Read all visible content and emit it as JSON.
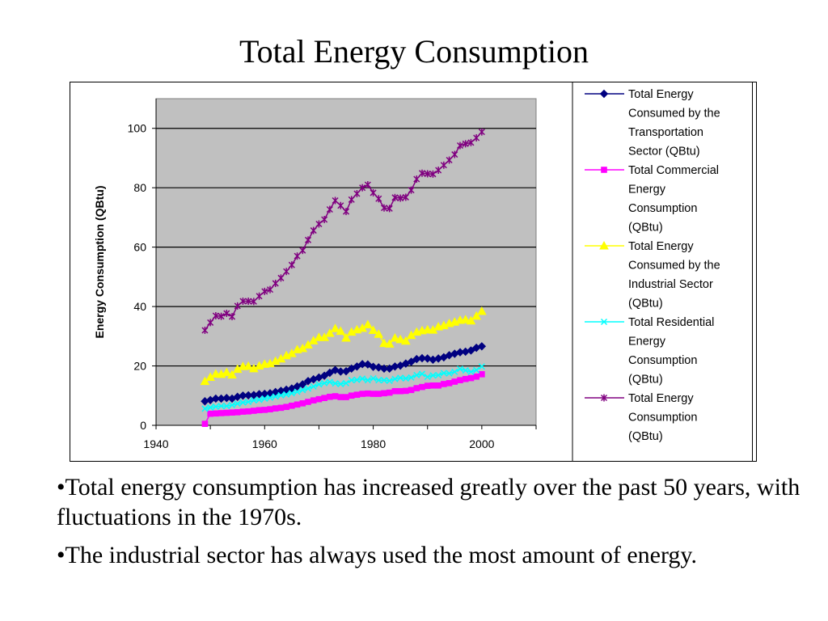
{
  "slide": {
    "title": "Total Energy Consumption",
    "bullets": [
      "•Total energy consumption has increased greatly over the past 50 years, with fluctuations in the 1970s.",
      "•The industrial sector has always used the most amount of energy."
    ]
  },
  "chart_data": {
    "type": "line",
    "title": "",
    "xlabel": "",
    "ylabel": "Energy Consumption (QBtu)",
    "xlim": [
      1940,
      2010
    ],
    "ylim": [
      0,
      110
    ],
    "x_ticks": [
      1940,
      1960,
      1980,
      2000
    ],
    "y_ticks": [
      0,
      20,
      40,
      60,
      80,
      100
    ],
    "grid": "horizontal",
    "plot_background": "#c0c0c0",
    "legend_position": "right",
    "x": [
      1949,
      1950,
      1951,
      1952,
      1953,
      1954,
      1955,
      1956,
      1957,
      1958,
      1959,
      1960,
      1961,
      1962,
      1963,
      1964,
      1965,
      1966,
      1967,
      1968,
      1969,
      1970,
      1971,
      1972,
      1973,
      1974,
      1975,
      1976,
      1977,
      1978,
      1979,
      1980,
      1981,
      1982,
      1983,
      1984,
      1985,
      1986,
      1987,
      1988,
      1989,
      1990,
      1991,
      1992,
      1993,
      1994,
      1995,
      1996,
      1997,
      1998,
      1999,
      2000
    ],
    "series": [
      {
        "name": "Total Energy Consumed by the Transportation Sector (QBtu)",
        "color": "#000080",
        "marker": "diamond",
        "values": [
          8.1,
          8.5,
          9.0,
          9.0,
          9.2,
          9.0,
          9.6,
          10.0,
          10.1,
          10.2,
          10.5,
          10.6,
          10.8,
          11.2,
          11.6,
          12.0,
          12.4,
          13.1,
          13.8,
          14.9,
          15.5,
          16.1,
          16.7,
          17.7,
          18.6,
          18.1,
          18.2,
          19.1,
          19.8,
          20.6,
          20.5,
          19.7,
          19.5,
          19.1,
          19.1,
          19.8,
          20.1,
          20.8,
          21.4,
          22.3,
          22.6,
          22.5,
          22.1,
          22.5,
          22.9,
          23.6,
          24.1,
          24.6,
          24.8,
          25.2,
          26.1,
          26.6
        ]
      },
      {
        "name": "Total Commercial Energy Consumption (QBtu)",
        "color": "#ff00ff",
        "marker": "square",
        "values": [
          0.5,
          3.9,
          4.0,
          4.1,
          4.2,
          4.3,
          4.4,
          4.6,
          4.7,
          4.9,
          5.1,
          5.2,
          5.4,
          5.7,
          5.9,
          6.2,
          6.6,
          7.0,
          7.4,
          7.9,
          8.4,
          8.8,
          9.2,
          9.6,
          9.8,
          9.5,
          9.5,
          10.0,
          10.3,
          10.6,
          10.7,
          10.6,
          10.6,
          10.8,
          11.0,
          11.5,
          11.5,
          11.6,
          11.9,
          12.5,
          12.9,
          13.3,
          13.4,
          13.4,
          13.9,
          14.2,
          14.7,
          15.2,
          15.6,
          15.9,
          16.4,
          17.2
        ]
      },
      {
        "name": "Total Energy Consumed by the Industrial Sector (QBtu)",
        "color": "#ffff00",
        "marker": "triangle",
        "values": [
          14.8,
          16.2,
          17.3,
          17.2,
          17.8,
          17.0,
          18.9,
          19.8,
          19.9,
          19.1,
          20.0,
          20.6,
          20.8,
          21.6,
          22.4,
          23.5,
          24.2,
          25.5,
          25.9,
          27.1,
          28.5,
          29.6,
          29.6,
          31.0,
          32.6,
          31.7,
          29.4,
          31.4,
          32.2,
          32.7,
          33.9,
          32.0,
          30.7,
          27.6,
          27.4,
          29.4,
          28.9,
          28.4,
          30.3,
          31.4,
          31.9,
          32.2,
          32.1,
          33.2,
          33.6,
          34.3,
          34.8,
          35.4,
          35.6,
          35.2,
          36.8,
          38.4
        ]
      },
      {
        "name": "Total Residential Energy Consumption (QBtu)",
        "color": "#00ffff",
        "marker": "x",
        "values": [
          5.6,
          6.0,
          6.3,
          6.5,
          6.5,
          6.8,
          7.3,
          7.7,
          7.9,
          8.4,
          8.6,
          9.0,
          9.3,
          9.7,
          10.1,
          10.4,
          10.8,
          11.3,
          11.9,
          12.4,
          13.1,
          13.8,
          14.2,
          14.6,
          14.1,
          13.9,
          14.2,
          15.2,
          15.3,
          15.7,
          15.2,
          15.8,
          15.2,
          15.2,
          15.0,
          15.6,
          16.0,
          15.8,
          16.1,
          16.9,
          17.3,
          16.3,
          16.8,
          16.9,
          17.6,
          17.5,
          18.0,
          19.0,
          18.5,
          18.0,
          18.6,
          19.8
        ]
      },
      {
        "name": "Total Energy Consumption (QBtu)",
        "color": "#800080",
        "marker": "asterisk",
        "values": [
          32.0,
          34.6,
          36.9,
          36.7,
          37.7,
          36.6,
          40.2,
          41.8,
          41.8,
          41.7,
          43.5,
          45.1,
          45.7,
          47.8,
          49.6,
          51.8,
          54.0,
          57.0,
          58.9,
          62.4,
          65.6,
          67.8,
          69.3,
          72.7,
          75.7,
          74.0,
          72.0,
          76.0,
          78.0,
          80.0,
          81.0,
          78.3,
          76.3,
          73.2,
          73.0,
          76.7,
          76.5,
          76.8,
          79.2,
          82.9,
          84.9,
          84.7,
          84.6,
          85.9,
          87.6,
          89.3,
          91.2,
          94.2,
          94.8,
          95.2,
          96.8,
          98.8
        ]
      }
    ]
  }
}
